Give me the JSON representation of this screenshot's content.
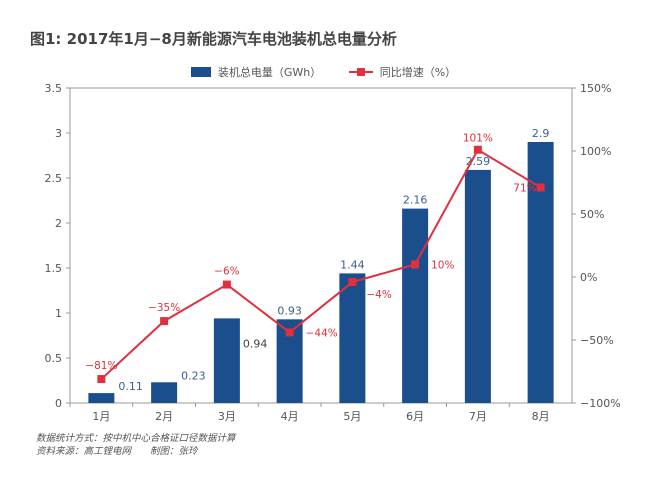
{
  "chart_data": {
    "type": "bar",
    "title": "图1: 2017年1月−8月新能源汽车电池装机总电量分析",
    "categories": [
      "1月",
      "2月",
      "3月",
      "4月",
      "5月",
      "6月",
      "7月",
      "8月"
    ],
    "series": [
      {
        "name": "装机总电量（GWh）",
        "type": "bar",
        "axis": "left",
        "color": "#1a4e8c",
        "values": [
          0.11,
          0.23,
          0.94,
          0.93,
          1.44,
          2.16,
          2.59,
          2.9
        ],
        "labels": [
          "0.11",
          "0.23",
          "0.94",
          "0.93",
          "1.44",
          "2.16",
          "2.59",
          "2.9"
        ]
      },
      {
        "name": "同比增速（%）",
        "type": "line",
        "axis": "right",
        "color": "#e0303e",
        "values": [
          -81,
          -35,
          -6,
          -44,
          -4,
          10,
          101,
          71
        ],
        "labels": [
          "−81%",
          "−35%",
          "−6%",
          "−44%",
          "−4%",
          "10%",
          "101%",
          "71%"
        ]
      }
    ],
    "y_left": {
      "range": [
        0,
        3.5
      ],
      "ticks": [
        "0",
        "0.5",
        "1",
        "1.5",
        "2",
        "2.5",
        "3",
        "3.5"
      ]
    },
    "y_right": {
      "range": [
        -100,
        150
      ],
      "ticks": [
        "−100%",
        "−50%",
        "0%",
        "50%",
        "100%",
        "150%"
      ]
    },
    "grid": false,
    "legend": "top-center"
  },
  "notes": [
    "数据统计方式：按中机中心合格证口径数据计算",
    "资料来源：高工锂电网　　制图：张玲"
  ]
}
